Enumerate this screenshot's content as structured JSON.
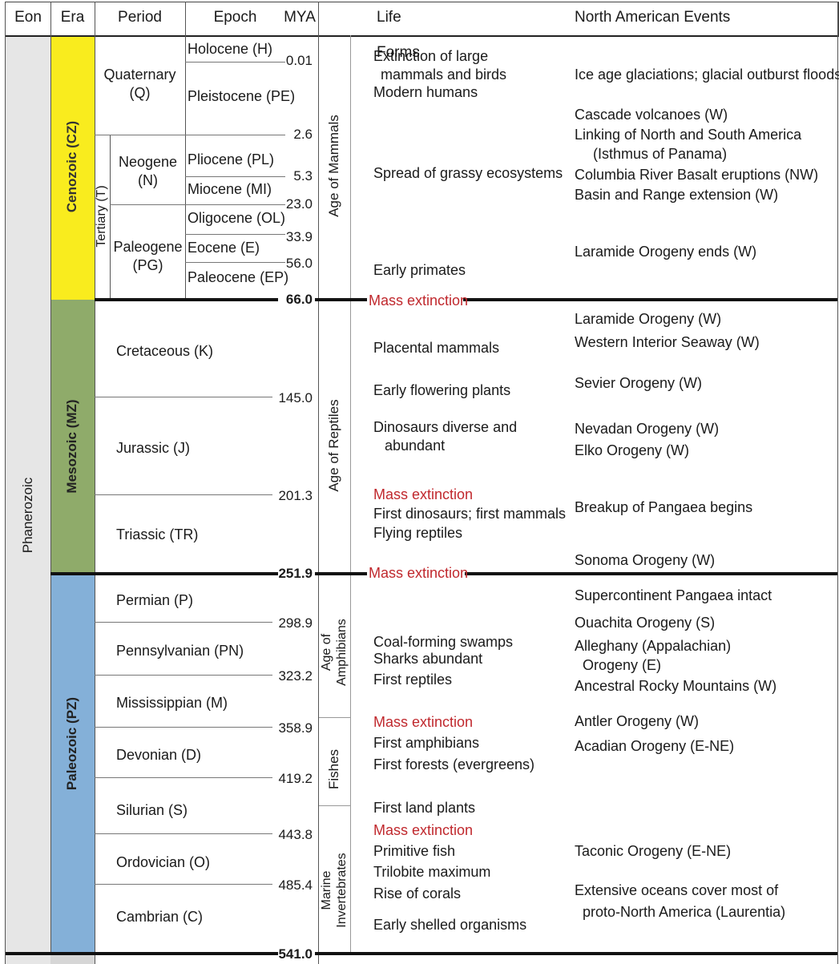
{
  "headers": {
    "eon": "Eon",
    "era": "Era",
    "period": "Period",
    "epoch": "Epoch",
    "mya": "MYA",
    "life": "Life Forms",
    "events": "North American Events"
  },
  "eon": {
    "phanerozoic": "Phanerozoic"
  },
  "eras": {
    "cenozoic": {
      "label": "Cenozoic (CZ)",
      "color": "#f9ec1e"
    },
    "mesozoic": {
      "label": "Mesozoic (MZ)",
      "color": "#8fab6a"
    },
    "paleozoic": {
      "label": "Paleozoic (PZ)",
      "color": "#84b0d8"
    }
  },
  "tertiary": "Tertiary (T)",
  "periods": {
    "quaternary": [
      "Quaternary",
      "(Q)"
    ],
    "neogene": [
      "Neogene",
      "(N)"
    ],
    "paleogene": [
      "Paleogene",
      "(PG)"
    ],
    "cretaceous": "Cretaceous (K)",
    "jurassic": "Jurassic (J)",
    "triassic": "Triassic (TR)",
    "permian": "Permian (P)",
    "pennsylvanian": "Pennsylvanian (PN)",
    "mississippian": "Mississippian (M)",
    "devonian": "Devonian (D)",
    "silurian": "Silurian (S)",
    "ordovician": "Ordovician (O)",
    "cambrian": "Cambrian (C)"
  },
  "epochs": {
    "holocene": "Holocene (H)",
    "pleistocene": "Pleistocene (PE)",
    "pliocene": "Pliocene (PL)",
    "miocene": "Miocene (MI)",
    "oligocene": "Oligocene (OL)",
    "eocene": "Eocene (E)",
    "paleocene": "Paleocene (EP)"
  },
  "mya": [
    "0.01",
    "2.6",
    "5.3",
    "23.0",
    "33.9",
    "56.0",
    "66.0",
    "145.0",
    "201.3",
    "251.9",
    "298.9",
    "323.2",
    "358.9",
    "419.2",
    "443.8",
    "485.4",
    "541.0"
  ],
  "ages": {
    "mammals": "Age of Mammals",
    "reptiles": "Age of Reptiles",
    "amphibians": [
      "Age of",
      "Amphibians"
    ],
    "fishes": "Fishes",
    "invertebrates": [
      "Marine",
      "Invertebrates"
    ]
  },
  "life": {
    "extinction_large": "Extinction of large",
    "mammals_birds": "mammals and birds",
    "modern_humans": "Modern humans",
    "grassy": "Spread of grassy ecosystems",
    "early_primates": "Early primates",
    "mass_extinction": "Mass extinction",
    "placental": "Placental mammals",
    "flowering": "Early flowering plants",
    "dinosaurs_diverse": "Dinosaurs diverse and",
    "abundant": "abundant",
    "first_dinos": "First dinosaurs; first mammals",
    "flying": "Flying reptiles",
    "coal": "Coal-forming swamps",
    "sharks": "Sharks abundant",
    "first_reptiles": "First reptiles",
    "first_amphibians": "First amphibians",
    "first_forests": "First forests (evergreens)",
    "land_plants": "First land plants",
    "primitive_fish": "Primitive fish",
    "trilobite": "Trilobite maximum",
    "corals": "Rise of corals",
    "shelled": "Early shelled organisms"
  },
  "events": {
    "ice_age": "Ice age glaciations; glacial outburst floods",
    "cascade": "Cascade volcanoes (W)",
    "linking": "Linking of North and South America",
    "isthmus": "(Isthmus of Panama)",
    "columbia": "Columbia River Basalt eruptions (NW)",
    "basin": "Basin and Range extension (W)",
    "laramide_ends": "Laramide Orogeny ends (W)",
    "laramide": "Laramide Orogeny (W)",
    "seaway": "Western Interior Seaway (W)",
    "sevier": "Sevier Orogeny (W)",
    "nevadan": "Nevadan Orogeny (W)",
    "elko": "Elko Orogeny (W)",
    "pangaea_breakup": "Breakup of Pangaea begins",
    "sonoma": "Sonoma Orogeny (W)",
    "pangaea_intact": "Supercontinent Pangaea intact",
    "ouachita": "Ouachita Orogeny (S)",
    "alleghany": "Alleghany (Appalachian)",
    "alleghany2": "Orogeny (E)",
    "ancestral": "Ancestral Rocky Mountains (W)",
    "antler": "Antler Orogeny (W)",
    "acadian": "Acadian Orogeny (E-NE)",
    "taconic": "Taconic Orogeny (E-NE)",
    "oceans": "Extensive oceans cover most of",
    "laurentia": "proto-North America (Laurentia)"
  }
}
